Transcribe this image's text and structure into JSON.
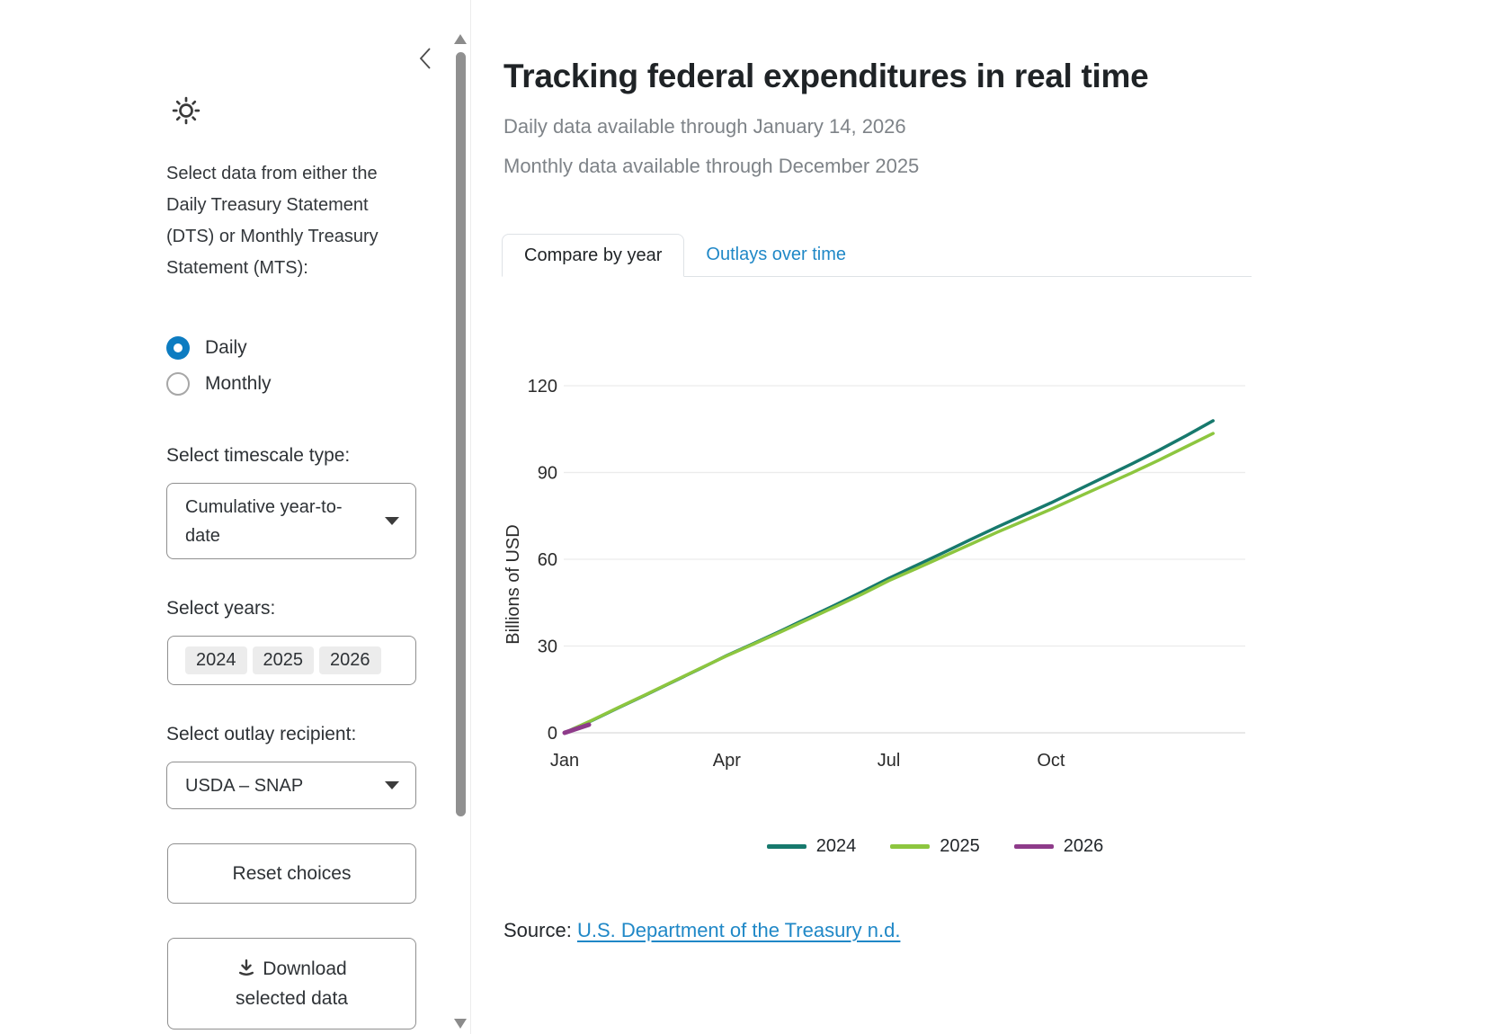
{
  "header": {
    "title": "Tracking federal expenditures in real time",
    "subtitle_daily": "Daily data available through January 14, 2026",
    "subtitle_monthly": "Monthly data available through December 2025"
  },
  "tabs": [
    {
      "label": "Compare by year",
      "active": true
    },
    {
      "label": "Outlays over time",
      "active": false
    }
  ],
  "sidebar": {
    "intro": "Select data from either the Daily Treasury Statement (DTS) or Monthly Treasury Statement (MTS):",
    "radios": [
      {
        "label": "Daily",
        "selected": true
      },
      {
        "label": "Monthly",
        "selected": false
      }
    ],
    "timescale_label": "Select timescale type:",
    "timescale_value": "Cumulative year-to-date",
    "years_label": "Select years:",
    "years": [
      "2024",
      "2025",
      "2026"
    ],
    "recipient_label": "Select outlay recipient:",
    "recipient_value": "USDA – SNAP",
    "reset_label": "Reset choices",
    "download_label": "Download selected data"
  },
  "icons": {
    "theme": "sun-icon",
    "sidebar_collapse": "chevron-left-icon",
    "download": "download-icon"
  },
  "source": {
    "prefix": "Source: ",
    "link_text": "U.S. Department of the Treasury n.d."
  },
  "colors": {
    "accent_blue": "#2088c7",
    "radio_blue": "#0d7cc1",
    "series_2024": "#17796d",
    "series_2025": "#8dc63f",
    "series_2026": "#8e3b8a"
  },
  "chart_data": {
    "type": "line",
    "title": "",
    "xlabel": "",
    "ylabel": "Billions of USD",
    "ylim": [
      0,
      120
    ],
    "yticks": [
      0,
      30,
      60,
      90,
      120
    ],
    "xticks": [
      "Jan",
      "Apr",
      "Jul",
      "Oct"
    ],
    "xtick_month_positions": [
      0,
      3,
      6,
      9
    ],
    "grid": true,
    "legend_position": "bottom",
    "x_unit": "month (0 = Jan 1, 12 = Dec 31)",
    "series": [
      {
        "name": "2024",
        "color": "#17796d",
        "width": 3.5,
        "x": [
          0,
          0.5,
          1,
          1.5,
          2,
          2.5,
          3,
          3.5,
          4,
          4.5,
          5,
          5.5,
          6,
          6.5,
          7,
          7.5,
          8,
          8.5,
          9,
          9.5,
          10,
          10.5,
          11,
          11.5,
          12
        ],
        "values": [
          0,
          4.2,
          8.7,
          13.1,
          17.6,
          22.1,
          26.7,
          30.9,
          35.2,
          39.7,
          44.1,
          48.7,
          53.4,
          57.8,
          62.2,
          66.7,
          71.1,
          75.3,
          79.5,
          84.0,
          88.5,
          93.0,
          97.7,
          102.7,
          107.9
        ]
      },
      {
        "name": "2025",
        "color": "#8dc63f",
        "width": 3.5,
        "x": [
          0,
          0.5,
          1,
          1.5,
          2,
          2.5,
          3,
          3.5,
          4,
          4.5,
          5,
          5.5,
          6,
          6.5,
          7,
          7.5,
          8,
          8.5,
          9,
          9.5,
          10,
          10.5,
          11,
          11.5,
          12
        ],
        "values": [
          0,
          4.3,
          8.8,
          13.2,
          17.7,
          22.2,
          26.6,
          30.7,
          34.9,
          39.2,
          43.5,
          47.9,
          52.6,
          56.7,
          60.9,
          65.1,
          69.3,
          73.3,
          77.3,
          81.5,
          85.7,
          89.9,
          94.3,
          98.9,
          103.5
        ]
      },
      {
        "name": "2026",
        "color": "#8e3b8a",
        "width": 5,
        "x": [
          0,
          0.45
        ],
        "values": [
          0,
          2.8
        ]
      }
    ]
  }
}
